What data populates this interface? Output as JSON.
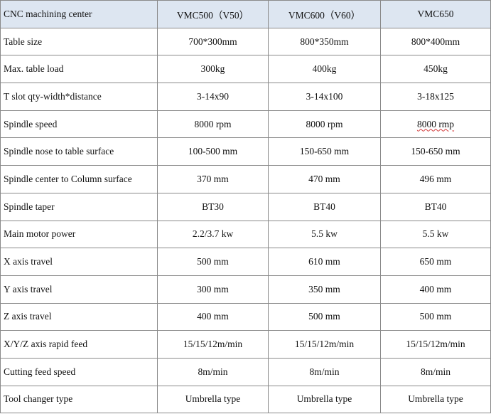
{
  "header": {
    "label": "CNC machining center",
    "models": [
      "VMC500（V50）",
      "VMC600（V60）",
      "VMC650"
    ]
  },
  "rows": [
    {
      "label": "Table size",
      "values": [
        "700*300mm",
        "800*350mm",
        "800*400mm"
      ]
    },
    {
      "label": "Max. table load",
      "values": [
        "300kg",
        "400kg",
        "450kg"
      ]
    },
    {
      "label": "T slot qty-width*distance",
      "values": [
        "3-14x90",
        "3-14x100",
        "3-18x125"
      ]
    },
    {
      "label": "Spindle speed",
      "values": [
        "8000 rpm",
        "8000 rpm",
        "8000 rmp"
      ]
    },
    {
      "label": "Spindle nose to table surface",
      "values": [
        "100-500 mm",
        "150-650 mm",
        "150-650 mm"
      ]
    },
    {
      "label": "Spindle center to Column surface",
      "values": [
        "370 mm",
        "470 mm",
        "496 mm"
      ]
    },
    {
      "label": "Spindle taper",
      "values": [
        "BT30",
        "BT40",
        "BT40"
      ]
    },
    {
      "label": "Main motor power",
      "values": [
        "2.2/3.7 kw",
        "5.5 kw",
        "5.5 kw"
      ]
    },
    {
      "label": "X axis travel",
      "values": [
        "500 mm",
        "610 mm",
        "650 mm"
      ]
    },
    {
      "label": "Y axis travel",
      "values": [
        "300 mm",
        "350 mm",
        "400 mm"
      ]
    },
    {
      "label": "Z axis travel",
      "values": [
        "400 mm",
        "500 mm",
        "500 mm"
      ]
    },
    {
      "label": "X/Y/Z axis rapid feed",
      "values": [
        "15/15/12m/min",
        "15/15/12m/min",
        "15/15/12m/min"
      ]
    },
    {
      "label": "Cutting feed speed",
      "values": [
        "8m/min",
        "8m/min",
        "8m/min"
      ]
    },
    {
      "label": "Tool changer type",
      "values": [
        "Umbrella type",
        "Umbrella type",
        "Umbrella type"
      ]
    }
  ]
}
